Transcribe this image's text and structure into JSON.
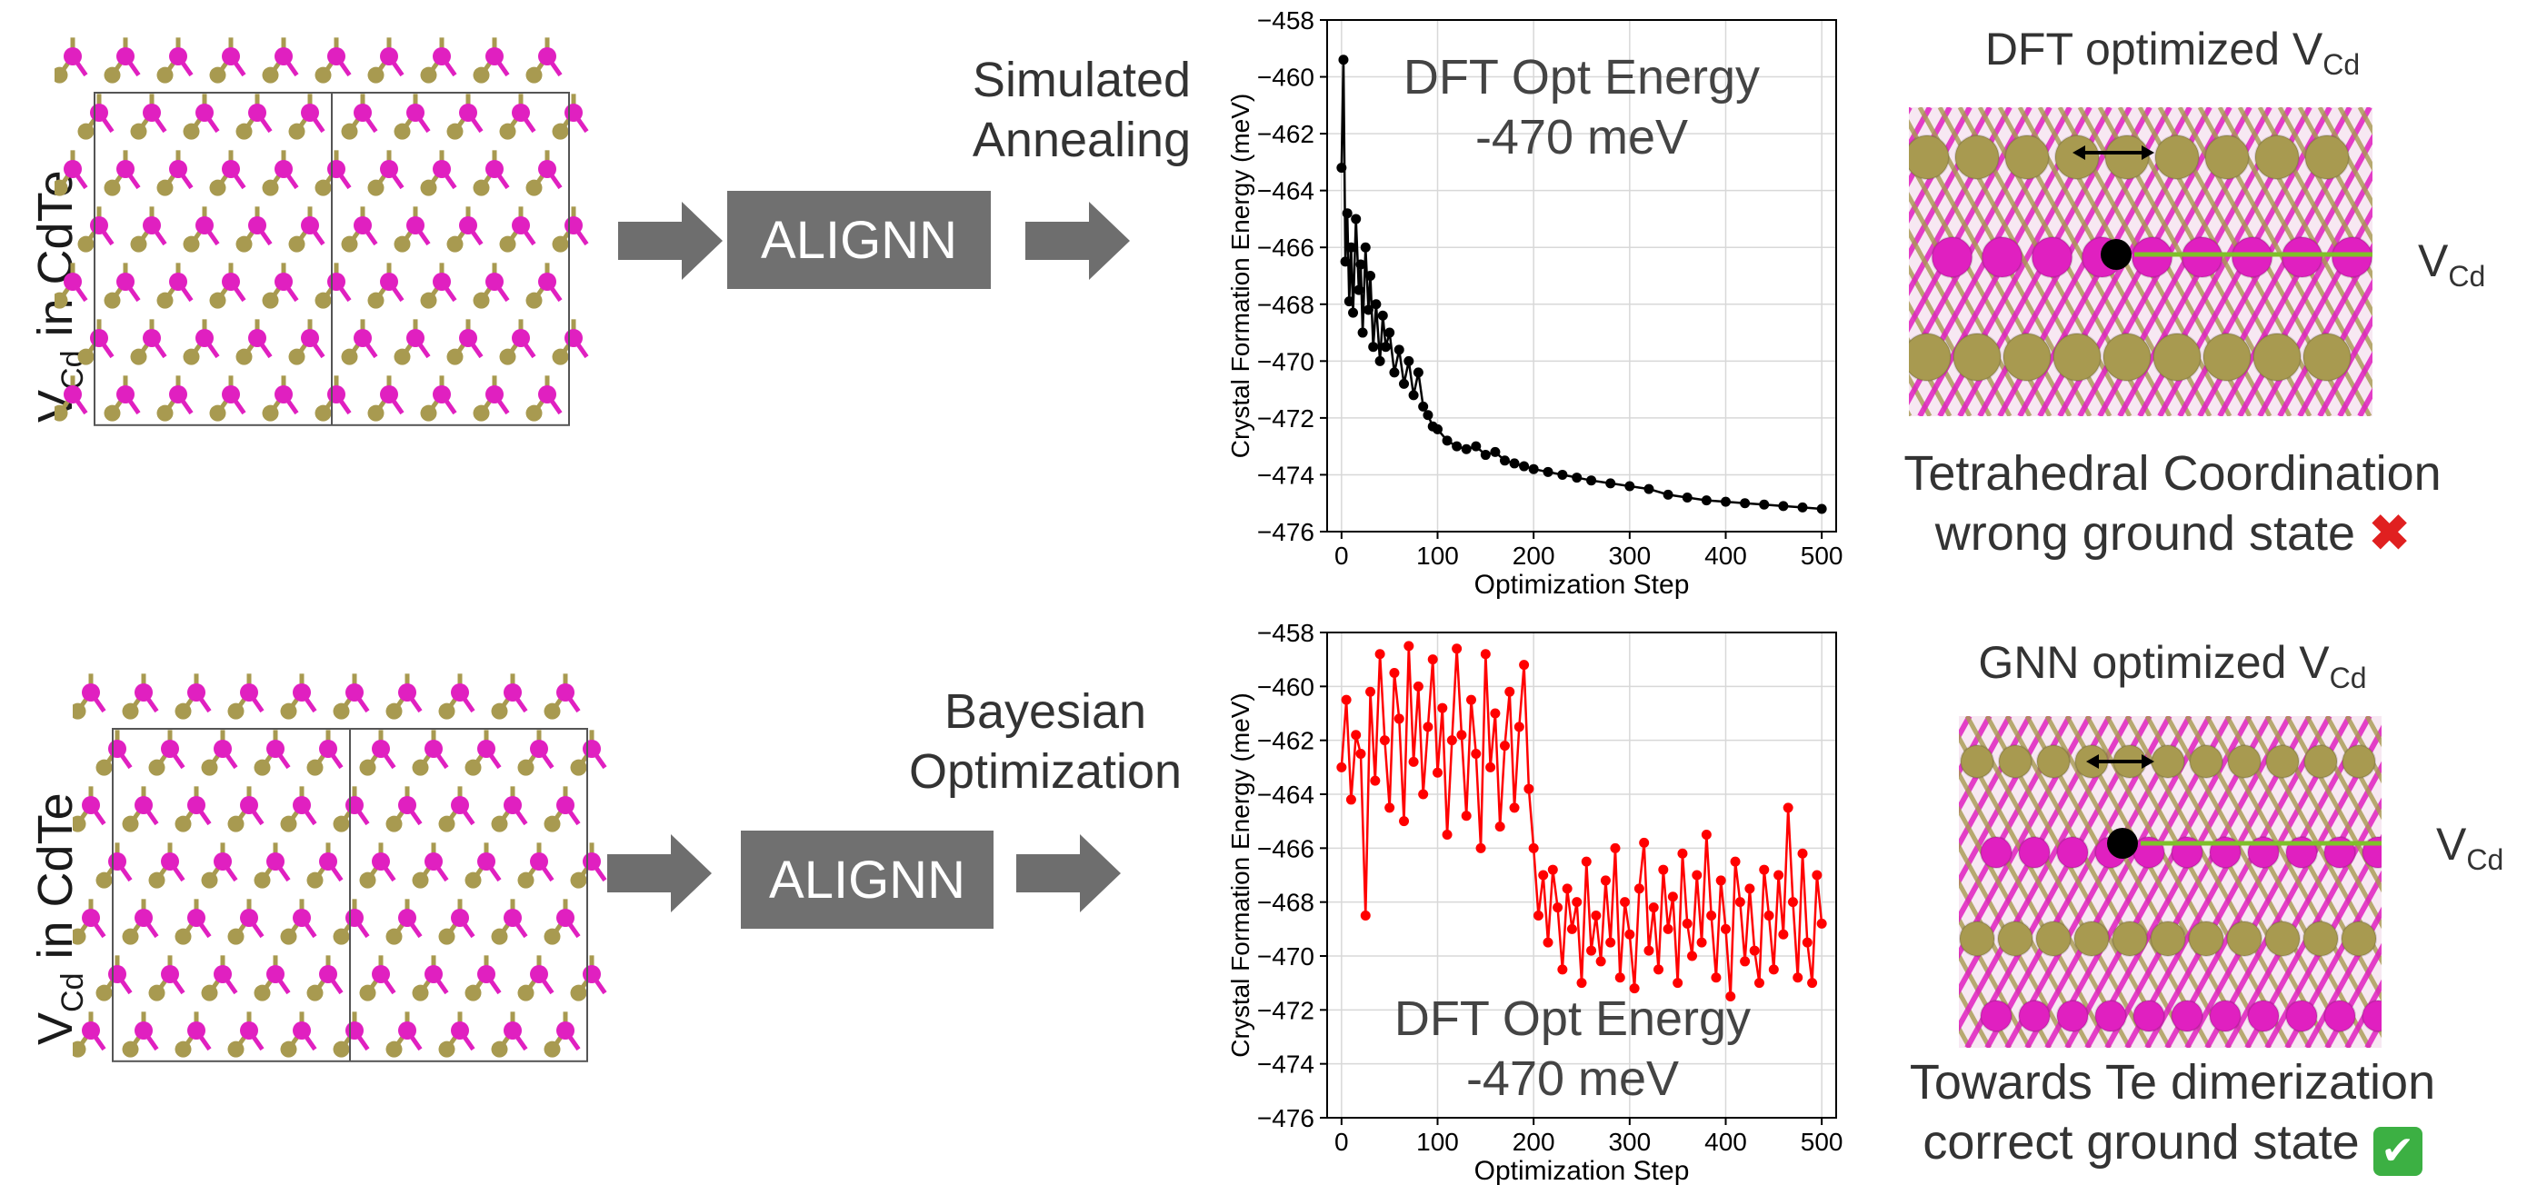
{
  "rows": [
    {
      "structure_label": {
        "main": "V",
        "sub": "Cd",
        "rest": " in CdTe"
      },
      "model_label": "ALIGNN",
      "method_label": [
        "Simulated",
        "Annealing"
      ],
      "annotation": [
        "DFT Opt Energy",
        "-470 meV"
      ],
      "result_title": {
        "main": "DFT optimized V",
        "sub": "Cd"
      },
      "vacancy_label": {
        "main": "V",
        "sub": "Cd"
      },
      "caption": [
        "Tetrahedral Coordination",
        "wrong ground state"
      ],
      "caption_mark": "✖",
      "caption_mark_color": "#e02020"
    },
    {
      "structure_label": {
        "main": "V",
        "sub": "Cd",
        "rest": " in CdTe"
      },
      "model_label": "ALIGNN",
      "method_label": [
        "Bayesian",
        "Optimization"
      ],
      "annotation": [
        "DFT Opt Energy",
        "-470 meV"
      ],
      "result_title": {
        "main": "GNN optimized V",
        "sub": "Cd"
      },
      "vacancy_label": {
        "main": "V",
        "sub": "Cd"
      },
      "caption": [
        "Towards Te dimerization",
        "correct ground state"
      ],
      "caption_mark": "✔",
      "caption_mark_color": "#3cb043"
    }
  ],
  "colors": {
    "cd_atom": "#e020c0",
    "te_atom": "#a89a50",
    "arrow": "#6e6e6e",
    "box": "#707070",
    "sa_series": "#000000",
    "bo_series": "#ff0000",
    "vacancy_arrow": "#7fbf2a"
  },
  "chart_data": [
    {
      "type": "line",
      "title": "",
      "xlabel": "Optimization Step",
      "ylabel": "Crystal Formation Energy (meV)",
      "xlim": [
        -15,
        515
      ],
      "ylim": [
        -476,
        -458
      ],
      "xticks": [
        0,
        100,
        200,
        300,
        400,
        500
      ],
      "yticks": [
        -476,
        -474,
        -472,
        -470,
        -468,
        -466,
        -464,
        -462,
        -460,
        -458
      ],
      "grid": true,
      "series": [
        {
          "color": "#000000",
          "marker": "circle",
          "x": [
            0,
            2,
            4,
            6,
            8,
            10,
            12,
            15,
            18,
            20,
            22,
            25,
            28,
            30,
            33,
            36,
            40,
            43,
            46,
            50,
            55,
            60,
            65,
            70,
            75,
            80,
            85,
            90,
            95,
            100,
            110,
            120,
            130,
            140,
            150,
            160,
            170,
            180,
            190,
            200,
            215,
            230,
            245,
            260,
            280,
            300,
            320,
            340,
            360,
            380,
            400,
            420,
            440,
            460,
            480,
            500
          ],
          "y": [
            -463.2,
            -459.4,
            -466.5,
            -464.8,
            -467.9,
            -466.0,
            -468.3,
            -465.0,
            -467.5,
            -466.6,
            -469.0,
            -466.0,
            -468.2,
            -467.0,
            -469.5,
            -468.0,
            -470.0,
            -468.4,
            -469.5,
            -469.0,
            -470.4,
            -469.6,
            -470.8,
            -470.0,
            -471.2,
            -470.4,
            -471.6,
            -471.9,
            -472.3,
            -472.4,
            -472.8,
            -473.0,
            -473.1,
            -473.0,
            -473.3,
            -473.2,
            -473.5,
            -473.6,
            -473.7,
            -473.8,
            -473.9,
            -474.0,
            -474.1,
            -474.2,
            -474.3,
            -474.4,
            -474.5,
            -474.7,
            -474.8,
            -474.9,
            -474.95,
            -475.0,
            -475.05,
            -475.1,
            -475.15,
            -475.2
          ]
        }
      ]
    },
    {
      "type": "line",
      "title": "",
      "xlabel": "Optimization Step",
      "ylabel": "Crystal Formation Energy (meV)",
      "xlim": [
        -15,
        515
      ],
      "ylim": [
        -476,
        -458
      ],
      "xticks": [
        0,
        100,
        200,
        300,
        400,
        500
      ],
      "yticks": [
        -476,
        -474,
        -472,
        -470,
        -468,
        -466,
        -464,
        -462,
        -460,
        -458
      ],
      "grid": true,
      "series": [
        {
          "color": "#ff0000",
          "marker": "circle",
          "x": [
            0,
            5,
            10,
            15,
            20,
            25,
            30,
            35,
            40,
            45,
            50,
            55,
            60,
            65,
            70,
            75,
            80,
            85,
            90,
            95,
            100,
            105,
            110,
            115,
            120,
            125,
            130,
            135,
            140,
            145,
            150,
            155,
            160,
            165,
            170,
            175,
            180,
            185,
            190,
            195,
            200,
            205,
            210,
            215,
            220,
            225,
            230,
            235,
            240,
            245,
            250,
            255,
            260,
            265,
            270,
            275,
            280,
            285,
            290,
            295,
            300,
            305,
            310,
            315,
            320,
            325,
            330,
            335,
            340,
            345,
            350,
            355,
            360,
            365,
            370,
            375,
            380,
            385,
            390,
            395,
            400,
            405,
            410,
            415,
            420,
            425,
            430,
            435,
            440,
            445,
            450,
            455,
            460,
            465,
            470,
            475,
            480,
            485,
            490,
            495,
            500
          ],
          "y": [
            -463.0,
            -460.5,
            -464.2,
            -461.8,
            -462.5,
            -468.5,
            -460.2,
            -463.5,
            -458.8,
            -462.0,
            -464.5,
            -459.5,
            -461.2,
            -465.0,
            -458.5,
            -462.8,
            -460.0,
            -464.0,
            -461.5,
            -459.0,
            -463.2,
            -460.8,
            -465.5,
            -462.0,
            -458.6,
            -461.8,
            -464.8,
            -460.5,
            -462.5,
            -466.0,
            -458.8,
            -463.0,
            -461.0,
            -465.2,
            -462.2,
            -460.2,
            -464.5,
            -461.5,
            -459.2,
            -463.8,
            -466.0,
            -468.5,
            -467.0,
            -469.5,
            -466.8,
            -468.2,
            -470.5,
            -467.5,
            -469.0,
            -468.0,
            -471.0,
            -466.5,
            -469.8,
            -468.5,
            -470.2,
            -467.2,
            -469.5,
            -466.0,
            -470.8,
            -468.0,
            -469.2,
            -471.2,
            -467.5,
            -465.8,
            -469.8,
            -468.2,
            -470.5,
            -466.8,
            -469.0,
            -467.8,
            -471.0,
            -466.2,
            -468.8,
            -470.0,
            -467.0,
            -469.5,
            -465.5,
            -468.5,
            -470.8,
            -467.2,
            -469.0,
            -471.5,
            -466.5,
            -468.0,
            -470.2,
            -467.5,
            -469.8,
            -471.0,
            -466.8,
            -468.5,
            -470.5,
            -467.0,
            -469.2,
            -464.5,
            -468.0,
            -470.8,
            -466.2,
            -469.5,
            -471.0,
            -467.0,
            -468.8
          ]
        }
      ]
    }
  ]
}
